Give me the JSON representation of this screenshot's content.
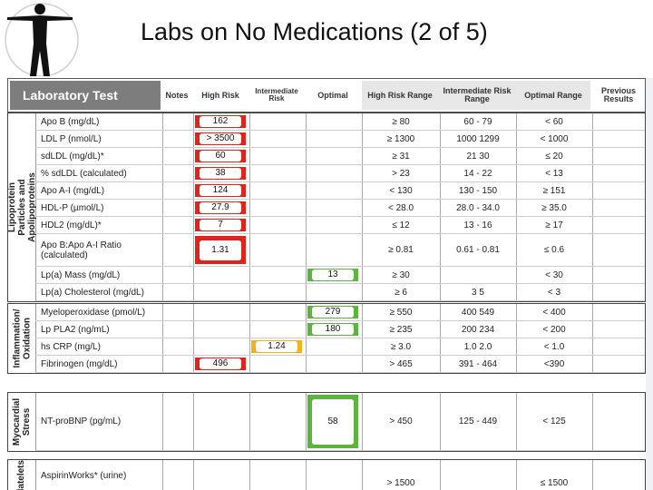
{
  "slide": {
    "title": "Labs on No Medications (2 of 5)"
  },
  "header": {
    "lab_test": "Laboratory Test",
    "notes": "Notes",
    "high_risk": "High Risk",
    "intermediate_risk": "Intermediate Risk",
    "optimal": "Optimal",
    "high_risk_range": "High Risk Range",
    "intermediate_risk_range": "Intermediate Risk Range",
    "optimal_range": "Optimal Range",
    "previous_results": "Previous Results"
  },
  "sections": [
    {
      "label": "Lipoprotein Particles and Apolipoproteins",
      "rows": [
        {
          "name": "Apo B (mg/dL)",
          "value": "162",
          "status": "high",
          "high_range": "≥ 80",
          "mid_range": "60 - 79",
          "opt_range": "< 60"
        },
        {
          "name": "LDL P (nmol/L)",
          "value": "> 3500",
          "status": "high",
          "high_range": "≥ 1300",
          "mid_range": "1000 1299",
          "opt_range": "< 1000"
        },
        {
          "name": "sdLDL (mg/dL)*",
          "value": "60",
          "status": "high",
          "high_range": "≥ 31",
          "mid_range": "21 30",
          "opt_range": "≤ 20"
        },
        {
          "name": "% sdLDL (calculated)",
          "value": "38",
          "status": "high",
          "high_range": "> 23",
          "mid_range": "14 - 22",
          "opt_range": "< 13"
        },
        {
          "name": "Apo A-I (mg/dL)",
          "value": "124",
          "status": "high",
          "high_range": "< 130",
          "mid_range": "130 - 150",
          "opt_range": "≥ 151"
        },
        {
          "name": "HDL-P (µmol/L)",
          "value": "27.9",
          "status": "high",
          "high_range": "< 28.0",
          "mid_range": "28.0 - 34.0",
          "opt_range": "≥ 35.0"
        },
        {
          "name": "HDL2 (mg/dL)*",
          "value": "7",
          "status": "high",
          "high_range": "≤ 12",
          "mid_range": "13 - 16",
          "opt_range": "≥ 17"
        },
        {
          "name": "Apo B:Apo A-I Ratio (calculated)",
          "value": "1.31",
          "status": "high",
          "high_range": "≥ 0.81",
          "mid_range": "0.61 - 0.81",
          "opt_range": "≤ 0.6",
          "tall": true
        },
        {
          "name": "Lp(a) Mass (mg/dL)",
          "value": "13",
          "status": "opt",
          "high_range": "≥ 30",
          "mid_range": "",
          "opt_range": "< 30"
        },
        {
          "name": "Lp(a) Cholesterol (mg/dL)",
          "value": "",
          "status": "",
          "high_range": "≥ 6",
          "mid_range": "3 5",
          "opt_range": "< 3"
        }
      ]
    },
    {
      "label": "Inflammation/ Oxidation",
      "rows": [
        {
          "name": "Myeloperoxidase (pmol/L)",
          "value": "279",
          "status": "opt",
          "high_range": "≥ 550",
          "mid_range": "400 549",
          "opt_range": "< 400"
        },
        {
          "name": "Lp PLA2 (ng/mL)",
          "value": "180",
          "status": "opt",
          "high_range": "≥ 235",
          "mid_range": "200 234",
          "opt_range": "< 200"
        },
        {
          "name": "hs CRP (mg/L)",
          "value": "1.24",
          "status": "mid",
          "high_range": "≥ 3.0",
          "mid_range": "1.0 2.0",
          "opt_range": "< 1.0"
        },
        {
          "name": "Fibrinogen (mg/dL)",
          "value": "496",
          "status": "high",
          "high_range": "> 465",
          "mid_range": "391 - 464",
          "opt_range": "<390"
        }
      ]
    },
    {
      "label": "Myocardial Stress",
      "rows": [
        {
          "name": "NT-proBNP (pg/mL)",
          "value": "58",
          "status": "opt",
          "high_range": "> 450",
          "mid_range": "125 - 449",
          "opt_range": "< 125"
        }
      ]
    },
    {
      "label": "Platelets",
      "rows": [
        {
          "name": "AspirinWorks* (urine)",
          "value": "",
          "status": "",
          "high_range": "> 1500",
          "mid_range": "",
          "opt_range": "≤ 1500"
        }
      ]
    }
  ]
}
